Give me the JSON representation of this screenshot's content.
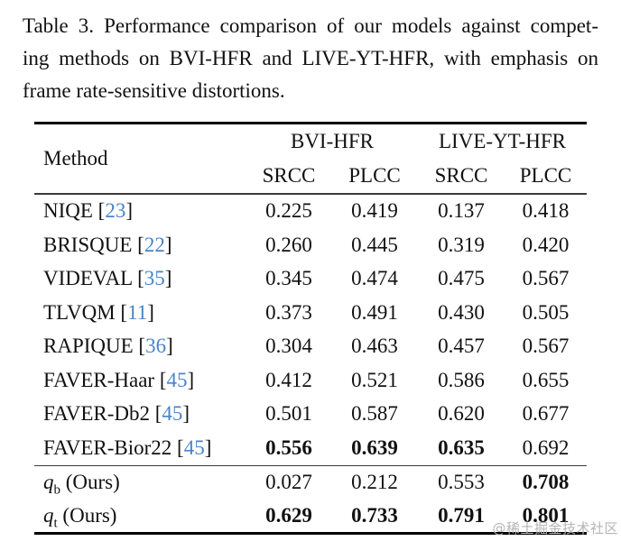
{
  "caption": {
    "lines": [
      "Table 3. Performance comparison of our models against compet-",
      "ing methods on BVI-HFR and LIVE-YT-HFR, with emphasis on",
      "frame rate-sensitive distortions."
    ]
  },
  "table": {
    "method_header": "Method",
    "group_headers": [
      "BVI-HFR",
      "LIVE-YT-HFR"
    ],
    "col_headers": [
      "SRCC",
      "PLCC",
      "SRCC",
      "PLCC"
    ],
    "rows": [
      {
        "name": "NIQE",
        "cite": "23",
        "values": [
          "0.225",
          "0.419",
          "0.137",
          "0.418"
        ],
        "bold": [
          false,
          false,
          false,
          false
        ]
      },
      {
        "name": "BRISQUE",
        "cite": "22",
        "values": [
          "0.260",
          "0.445",
          "0.319",
          "0.420"
        ],
        "bold": [
          false,
          false,
          false,
          false
        ]
      },
      {
        "name": "VIDEVAL",
        "cite": "35",
        "values": [
          "0.345",
          "0.474",
          "0.475",
          "0.567"
        ],
        "bold": [
          false,
          false,
          false,
          false
        ]
      },
      {
        "name": "TLVQM",
        "cite": "11",
        "values": [
          "0.373",
          "0.491",
          "0.430",
          "0.505"
        ],
        "bold": [
          false,
          false,
          false,
          false
        ]
      },
      {
        "name": "RAPIQUE",
        "cite": "36",
        "values": [
          "0.304",
          "0.463",
          "0.457",
          "0.567"
        ],
        "bold": [
          false,
          false,
          false,
          false
        ]
      },
      {
        "name": "FAVER-Haar",
        "cite": "45",
        "values": [
          "0.412",
          "0.521",
          "0.586",
          "0.655"
        ],
        "bold": [
          false,
          false,
          false,
          false
        ]
      },
      {
        "name": "FAVER-Db2",
        "cite": "45",
        "values": [
          "0.501",
          "0.587",
          "0.620",
          "0.677"
        ],
        "bold": [
          false,
          false,
          false,
          false
        ]
      },
      {
        "name": "FAVER-Bior22",
        "cite": "45",
        "values": [
          "0.556",
          "0.639",
          "0.635",
          "0.692"
        ],
        "bold": [
          true,
          true,
          true,
          false
        ]
      }
    ],
    "ours_rows": [
      {
        "math_base": "q",
        "math_sub": "b",
        "suffix": " (Ours)",
        "values": [
          "0.027",
          "0.212",
          "0.553",
          "0.708"
        ],
        "bold": [
          false,
          false,
          false,
          true
        ]
      },
      {
        "math_base": "q",
        "math_sub": "t",
        "suffix": " (Ours)",
        "values": [
          "0.629",
          "0.733",
          "0.791",
          "0.801"
        ],
        "bold": [
          true,
          true,
          true,
          true
        ]
      }
    ]
  },
  "watermark": "@稀土掘金技术社区",
  "colors": {
    "citation": "#4a84c8",
    "watermark": "#b5b5b5",
    "rule": "#000000"
  }
}
